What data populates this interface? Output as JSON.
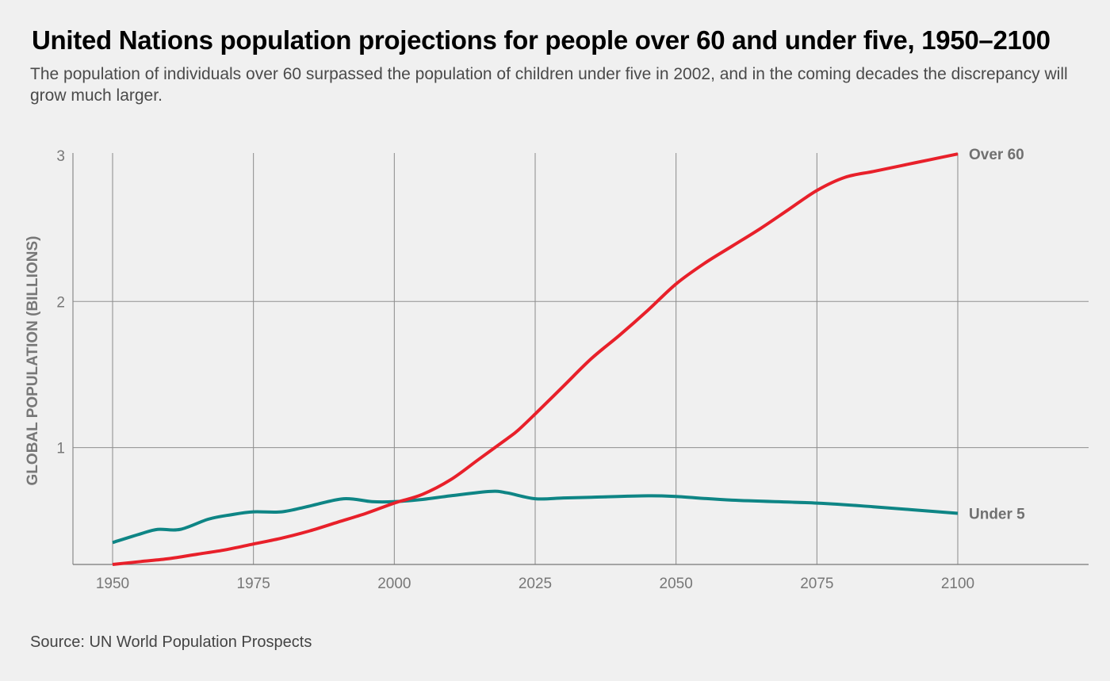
{
  "chart_data": {
    "type": "line",
    "title": "United Nations population projections for people over 60 and under five, 1950–2100",
    "subtitle": "The population of individuals over 60 surpassed the population of children under five in 2002, and in the coming decades the discrepancy will grow much larger.",
    "source": "Source: UN World Population Prospects",
    "xlabel": "",
    "ylabel": "GLOBAL POPULATION (BILLIONS)",
    "xlim": [
      1943,
      2123
    ],
    "ylim": [
      0.2,
      3
    ],
    "xticks": [
      1950,
      1975,
      2000,
      2025,
      2050,
      2075,
      2100
    ],
    "yticks": [
      1,
      2,
      3
    ],
    "grid": true,
    "legend": "inline-labels-right",
    "series": [
      {
        "name": "Over 60",
        "color": "#e8202a",
        "x": [
          1950,
          1955,
          1960,
          1965,
          1970,
          1975,
          1980,
          1985,
          1990,
          1995,
          2000,
          2005,
          2010,
          2015,
          2020,
          2022,
          2025,
          2030,
          2035,
          2040,
          2045,
          2050,
          2055,
          2060,
          2065,
          2070,
          2075,
          2080,
          2085,
          2090,
          2095,
          2100
        ],
        "values": [
          0.2,
          0.22,
          0.24,
          0.27,
          0.3,
          0.34,
          0.38,
          0.43,
          0.49,
          0.55,
          0.62,
          0.68,
          0.78,
          0.92,
          1.06,
          1.12,
          1.23,
          1.42,
          1.61,
          1.77,
          1.94,
          2.12,
          2.26,
          2.38,
          2.5,
          2.63,
          2.76,
          2.85,
          2.89,
          2.93,
          2.97,
          3.01
        ]
      },
      {
        "name": "Under 5",
        "color": "#0e8585",
        "x": [
          1950,
          1955,
          1958,
          1962,
          1967,
          1971,
          1975,
          1980,
          1985,
          1991,
          1996,
          2000,
          2005,
          2010,
          2017,
          2020,
          2025,
          2030,
          2035,
          2045,
          2050,
          2060,
          2075,
          2085,
          2100
        ],
        "values": [
          0.35,
          0.41,
          0.44,
          0.44,
          0.51,
          0.54,
          0.56,
          0.56,
          0.6,
          0.65,
          0.63,
          0.63,
          0.645,
          0.67,
          0.7,
          0.69,
          0.65,
          0.655,
          0.66,
          0.67,
          0.665,
          0.64,
          0.62,
          0.595,
          0.55
        ]
      }
    ]
  }
}
